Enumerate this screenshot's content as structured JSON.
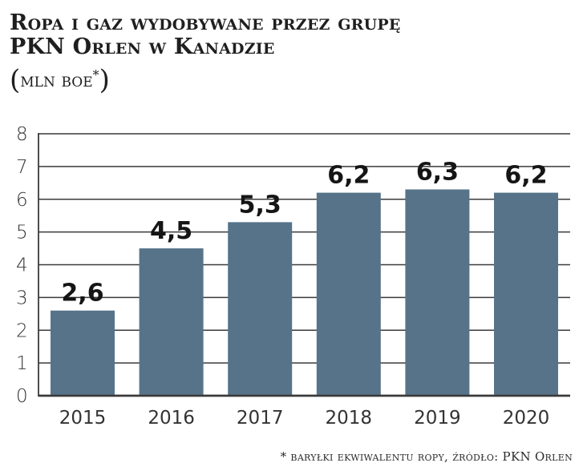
{
  "header": {
    "title_line1": "Ropa i gaz wydobywane przez grupę",
    "title_line2": "PKN Orlen w Kanadzie",
    "subtitle_open": "(",
    "subtitle_text": "mln boe",
    "subtitle_star": "*",
    "subtitle_close": ")"
  },
  "footnote": "* baryłki ekwiwalentu ropy, źródło: PKN Orlen",
  "colors": {
    "bar": "#577389",
    "grid": "#3a3a3a",
    "text": "#1f1f1f"
  },
  "chart_data": {
    "type": "bar",
    "title": "Ropa i gaz wydobywane przez grupę PKN Orlen w Kanadzie",
    "subtitle": "(mln boe*)",
    "xlabel": "",
    "ylabel": "mln boe",
    "categories": [
      "2015",
      "2016",
      "2017",
      "2018",
      "2019",
      "2020"
    ],
    "values": [
      2.6,
      4.5,
      5.3,
      6.2,
      6.3,
      6.2
    ],
    "value_labels": [
      "2,6",
      "4,5",
      "5,3",
      "6,2",
      "6,3",
      "6,2"
    ],
    "ylim": [
      0,
      8
    ],
    "yticks": [
      "0",
      "1",
      "2",
      "3",
      "4",
      "5",
      "6",
      "7",
      "8"
    ],
    "grid": true,
    "legend": null,
    "annotations": [
      "* baryłki ekwiwalentu ropy, źródło: PKN Orlen"
    ]
  }
}
